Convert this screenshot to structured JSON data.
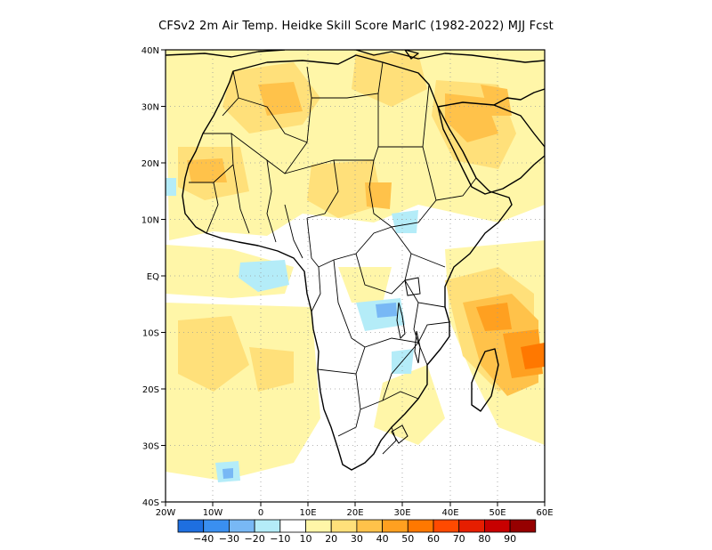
{
  "title": "CFSv2  2m Air Temp. Heidke Skill Score MarIC (1982-2022) MJJ Fcst",
  "map": {
    "lon_range": [
      -20,
      60
    ],
    "lat_range": [
      -40,
      40
    ],
    "lat_ticks": [
      "40N",
      "30N",
      "20N",
      "10N",
      "EQ",
      "10S",
      "20S",
      "30S",
      "40S"
    ],
    "lon_ticks": [
      "20W",
      "10W",
      "0",
      "10E",
      "20E",
      "30E",
      "40E",
      "50E",
      "60E"
    ]
  },
  "colorbar": {
    "colors": [
      "#1e6fe0",
      "#3a8ff0",
      "#78b8f5",
      "#b4ecf8",
      "#ffffff",
      "#fff6a8",
      "#ffe07a",
      "#ffc24a",
      "#ffa020",
      "#ff7800",
      "#ff4a00",
      "#e61e00",
      "#c80000",
      "#960000"
    ],
    "labels": [
      "-40",
      "-30",
      "-20",
      "-10",
      "10",
      "20",
      "30",
      "40",
      "50",
      "60",
      "70",
      "80",
      "90"
    ]
  },
  "palette": {
    "light_yellow": "#fff6a8",
    "yellow": "#ffe07a",
    "light_orange": "#ffc24a",
    "orange": "#ffa020",
    "dark_orange": "#ff7800",
    "light_blue": "#b4ecf8",
    "blue": "#78b8f5"
  }
}
